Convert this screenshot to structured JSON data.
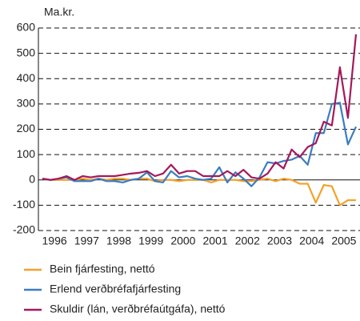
{
  "chart_data": {
    "type": "line",
    "ylabel": "Ma.kr.",
    "x": [
      1996.125,
      1996.375,
      1996.625,
      1996.875,
      1997.125,
      1997.375,
      1997.625,
      1997.875,
      1998.125,
      1998.375,
      1998.625,
      1998.875,
      1999.125,
      1999.375,
      1999.625,
      1999.875,
      2000.125,
      2000.375,
      2000.625,
      2000.875,
      2001.125,
      2001.375,
      2001.625,
      2001.875,
      2002.125,
      2002.375,
      2002.625,
      2002.875,
      2003.125,
      2003.375,
      2003.625,
      2003.875,
      2004.125,
      2004.375,
      2004.625,
      2004.875,
      2005.125,
      2005.375,
      2005.625,
      2005.875
    ],
    "series": [
      {
        "name": "Bein fjárfesting, nettó",
        "color": "#f4a12a",
        "values": [
          5,
          0,
          0,
          0,
          0,
          5,
          0,
          5,
          0,
          5,
          5,
          0,
          5,
          5,
          -5,
          0,
          0,
          -5,
          0,
          0,
          0,
          -10,
          0,
          0,
          0,
          -5,
          -5,
          0,
          5,
          -5,
          5,
          0,
          -15,
          -15,
          -90,
          -20,
          -25,
          -100,
          -80,
          -80
        ]
      },
      {
        "name": "Erlend verðbréfafjárfesting",
        "color": "#3a7dc0",
        "values": [
          5,
          0,
          5,
          10,
          -5,
          -5,
          -5,
          5,
          -5,
          -5,
          -10,
          0,
          5,
          30,
          -5,
          -10,
          35,
          10,
          15,
          5,
          0,
          5,
          50,
          -10,
          30,
          5,
          -25,
          10,
          70,
          65,
          75,
          80,
          95,
          60,
          185,
          185,
          300,
          305,
          140,
          210
        ]
      },
      {
        "name": "Skuldir (lán, verðbréfaútgáfa), nettó",
        "color": "#a3195b",
        "values": [
          5,
          0,
          5,
          15,
          0,
          15,
          10,
          15,
          15,
          15,
          20,
          25,
          28,
          35,
          15,
          25,
          60,
          25,
          35,
          35,
          15,
          15,
          15,
          35,
          15,
          40,
          10,
          5,
          25,
          70,
          45,
          120,
          90,
          130,
          145,
          230,
          215,
          445,
          245,
          575
        ]
      }
    ],
    "xlim": [
      1996,
      2006
    ],
    "xticks": [
      {
        "value": 1996.5,
        "label": "1996"
      },
      {
        "value": 1997.5,
        "label": "1997"
      },
      {
        "value": 1998.5,
        "label": "1998"
      },
      {
        "value": 1999.5,
        "label": "1999"
      },
      {
        "value": 2000.5,
        "label": "2000"
      },
      {
        "value": 2001.5,
        "label": "2001"
      },
      {
        "value": 2002.5,
        "label": "2002"
      },
      {
        "value": 2003.5,
        "label": "2003"
      },
      {
        "value": 2004.5,
        "label": "2004"
      },
      {
        "value": 2005.5,
        "label": "2005"
      }
    ],
    "ylim": [
      -200,
      600
    ],
    "yticks": [
      -200,
      -100,
      0,
      100,
      200,
      300,
      400,
      500,
      600
    ],
    "grid": true
  }
}
